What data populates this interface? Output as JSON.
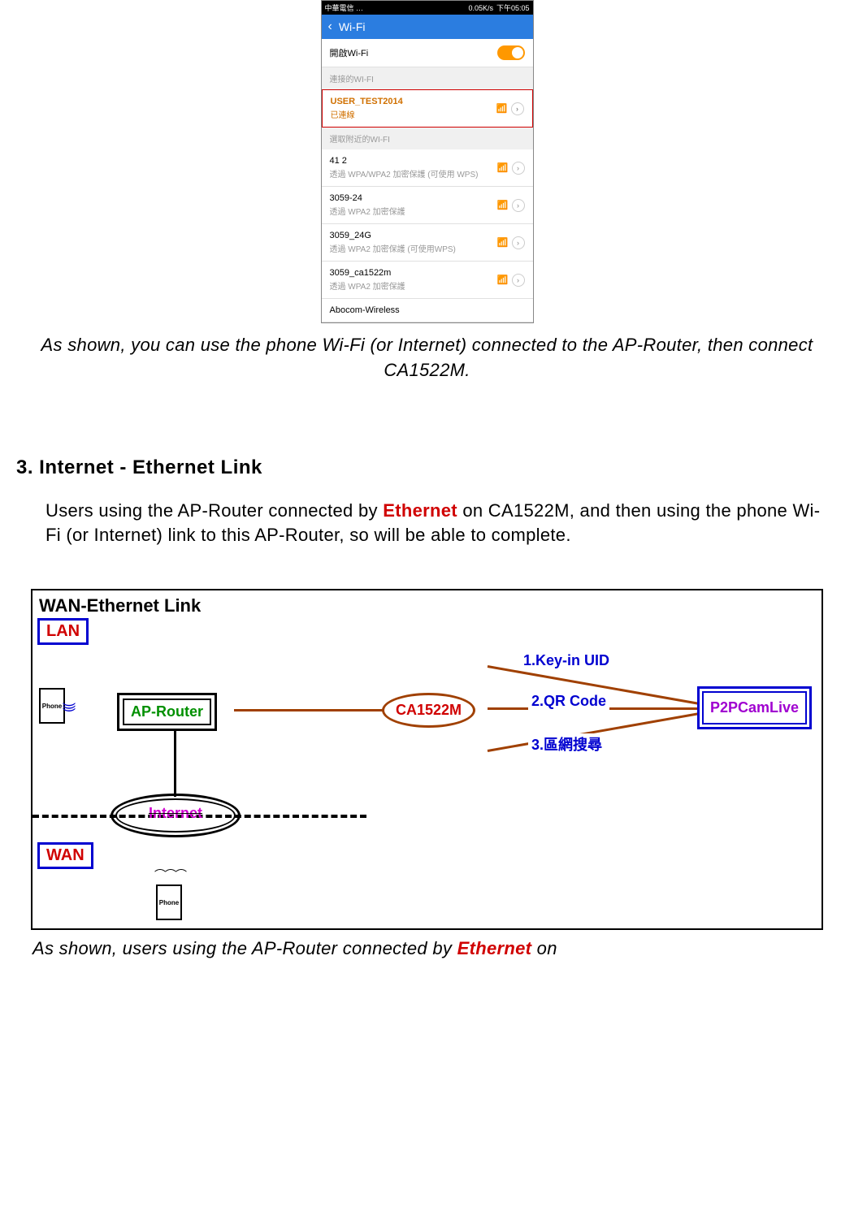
{
  "phone": {
    "status_left": "中華電信 …",
    "status_mid": "0.05K/s",
    "status_right": "下午05:05",
    "header": "Wi-Fi",
    "wifi_toggle_label": "開啟Wi-Fi",
    "section_connected": "連接的WI-FI",
    "connected": {
      "ssid": "USER_TEST2014",
      "status": "已連線"
    },
    "section_nearby": "選取附近的WI-FI",
    "networks": [
      {
        "ssid": "41 2",
        "detail": "透過 WPA/WPA2 加密保護 (可使用 WPS)"
      },
      {
        "ssid": "3059-24",
        "detail": "透過 WPA2 加密保護"
      },
      {
        "ssid": "3059_24G",
        "detail": "透過 WPA2 加密保護 (可使用WPS)"
      },
      {
        "ssid": "3059_ca1522m",
        "detail": "透過 WPA2 加密保護"
      },
      {
        "ssid": "Abocom-Wireless",
        "detail": ""
      }
    ]
  },
  "caption1": "As shown, you can use the phone Wi-Fi (or Internet) connected to the AP-Router, then connect CA1522M.",
  "heading": "3. Internet - Ethernet Link",
  "body_pre": "Users using the AP-Router connected by ",
  "body_red": "Ethernet",
  "body_post": " on CA1522M, and then using the phone Wi-Fi (or Internet) link to this AP-Router, so will be able to complete.",
  "diagram": {
    "title": "WAN-Ethernet Link",
    "lan": "LAN",
    "wan": "WAN",
    "phone": "Phone",
    "ap": "AP-Router",
    "ca": "CA1522M",
    "p2p": "P2PCamLive",
    "internet": "Internet",
    "branch1": "1.Key-in UID",
    "branch2": "2.QR Code",
    "branch3": "3.區網搜尋",
    "colors": {
      "brown": "#a04000",
      "blue": "#0000d0",
      "red": "#d00000",
      "green": "#009000",
      "magenta": "#d000d0",
      "purple": "#a000d0"
    }
  },
  "caption2_pre": "As shown, users using the AP-Router connected by ",
  "caption2_red": "Ethernet",
  "caption2_post": " on"
}
